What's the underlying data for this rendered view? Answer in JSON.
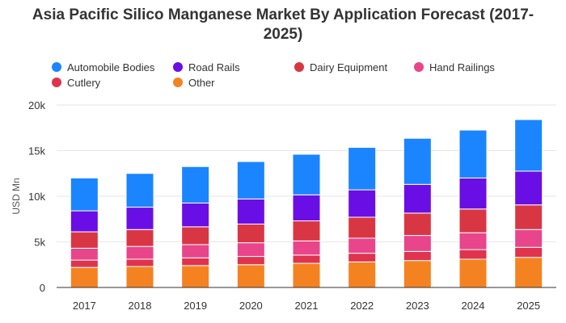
{
  "chart_data": {
    "type": "bar",
    "stacked": true,
    "title": "Asia Pacific Silico Manganese Market By Application Forecast (2017-2025)",
    "title_lines": [
      "Asia Pacific Silico Manganese Market By Application Forecast (2017-",
      "2025)"
    ],
    "xlabel": "",
    "ylabel": "USD Mn",
    "ylim": [
      0,
      20000
    ],
    "yticks": [
      0,
      5000,
      10000,
      15000,
      20000
    ],
    "ytick_labels": [
      "0",
      "5k",
      "10k",
      "15k",
      "20k"
    ],
    "grid": true,
    "legend_position": "top",
    "categories": [
      "2017",
      "2018",
      "2019",
      "2020",
      "2021",
      "2022",
      "2023",
      "2024",
      "2025"
    ],
    "series": [
      {
        "name": "Other",
        "color": "#f58220",
        "values": [
          2200,
          2300,
          2400,
          2500,
          2650,
          2800,
          2950,
          3100,
          3300
        ]
      },
      {
        "name": "Cutlery",
        "color": "#e0334e",
        "values": [
          800,
          800,
          850,
          900,
          900,
          950,
          1000,
          1050,
          1100
        ]
      },
      {
        "name": "Hand Railings",
        "color": "#e8458b",
        "values": [
          1300,
          1400,
          1450,
          1500,
          1550,
          1650,
          1750,
          1850,
          1950
        ]
      },
      {
        "name": "Dairy Equipment",
        "color": "#d93643",
        "values": [
          1800,
          1850,
          1950,
          2050,
          2200,
          2300,
          2450,
          2600,
          2700
        ]
      },
      {
        "name": "Road Rails",
        "color": "#6a0ee6",
        "values": [
          2300,
          2450,
          2600,
          2750,
          2850,
          3000,
          3150,
          3400,
          3700
        ]
      },
      {
        "name": "Automobile Bodies",
        "color": "#1a85ff",
        "values": [
          3600,
          3700,
          4000,
          4100,
          4450,
          4650,
          5050,
          5250,
          5650
        ]
      }
    ],
    "legend": [
      {
        "name": "Automobile Bodies",
        "color": "#1a85ff"
      },
      {
        "name": "Road Rails",
        "color": "#6a0ee6"
      },
      {
        "name": "Dairy Equipment",
        "color": "#d93643"
      },
      {
        "name": "Hand Railings",
        "color": "#e8458b"
      },
      {
        "name": "Cutlery",
        "color": "#e0334e"
      },
      {
        "name": "Other",
        "color": "#f58220"
      }
    ]
  }
}
